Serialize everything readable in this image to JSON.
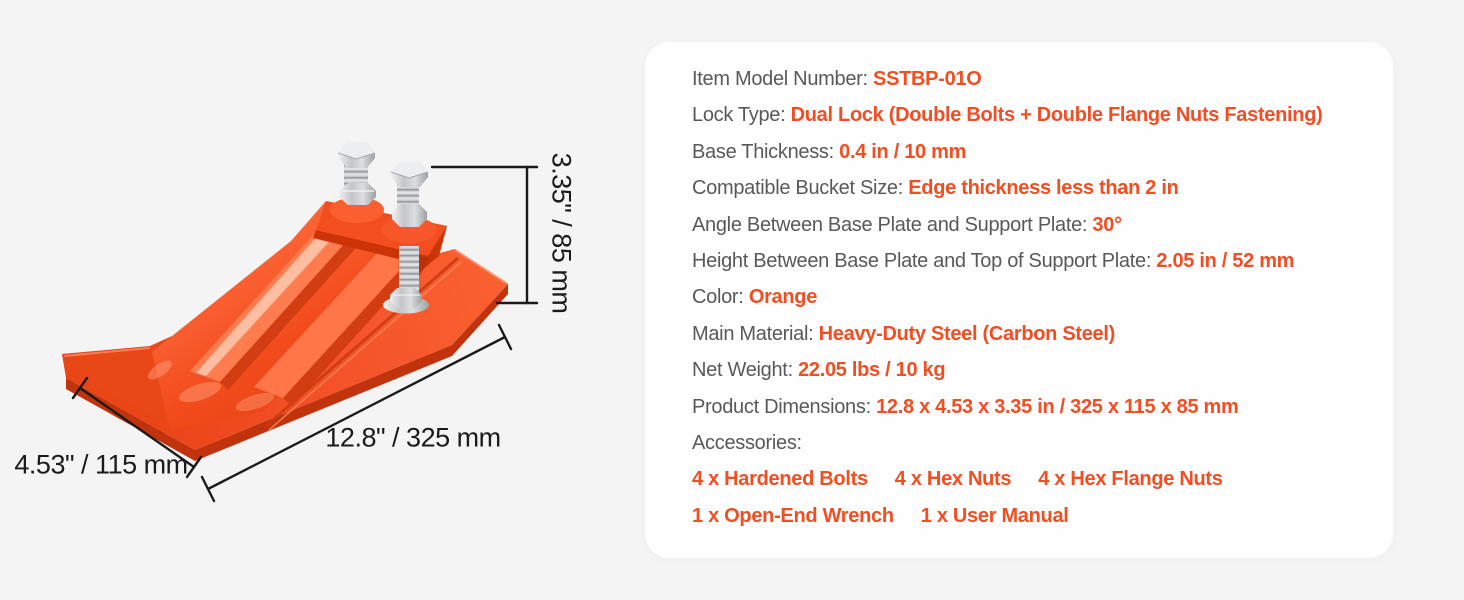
{
  "figure": {
    "description": "Orange heavy-duty steel bucket tooth plate with two bolts, shown with dimension lines",
    "labels": {
      "height": "3.35\" / 85 mm",
      "length": "12.8\" / 325 mm",
      "width": "4.53\" / 115 mm"
    },
    "colors": {
      "product_orange": "#f24e20",
      "product_orange_dark": "#c0330d",
      "metal": "#c6c8cb",
      "dimension_line": "#1b1b1b"
    }
  },
  "spec_card": {
    "background": "#fefefe",
    "label_color": "#58595b",
    "value_color": "#f04e23",
    "rows": [
      {
        "label": "Item Model Number: ",
        "value": "SSTBP-01O"
      },
      {
        "label": "Lock Type: ",
        "value": "Dual Lock (Double Bolts + Double Flange Nuts Fastening)"
      },
      {
        "label": "Base Thickness: ",
        "value": "0.4 in / 10 mm"
      },
      {
        "label": "Compatible Bucket Size: ",
        "value": "Edge thickness less than 2 in"
      },
      {
        "label": "Angle Between Base Plate and Support Plate: ",
        "value": "30°"
      },
      {
        "label": "Height Between Base Plate and Top of Support Plate: ",
        "value": "2.05 in / 52 mm"
      },
      {
        "label": "Color: ",
        "value": "Orange"
      },
      {
        "label": "Main Material: ",
        "value": "Heavy-Duty Steel (Carbon Steel)"
      },
      {
        "label": "Net Weight: ",
        "value": "22.05 lbs / 10 kg"
      },
      {
        "label": "Product Dimensions: ",
        "value": "12.8 x 4.53 x 3.35 in / 325 x 115 x 85 mm"
      }
    ],
    "accessories_label": "Accessories:",
    "accessories_rows": [
      [
        "4 x Hardened Bolts",
        "4 x Hex Nuts",
        "4 x Hex Flange Nuts"
      ],
      [
        "1 x Open-End Wrench",
        "1 x User Manual"
      ]
    ]
  }
}
